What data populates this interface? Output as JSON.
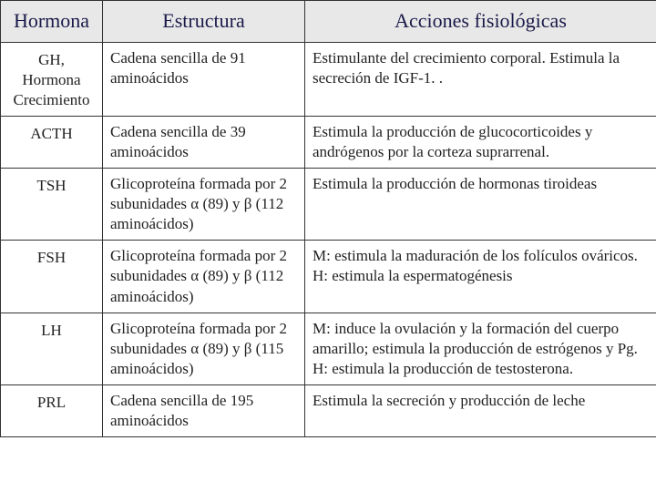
{
  "headers": [
    "Hormona",
    "Estructura",
    "Acciones fisiológicas"
  ],
  "rows": [
    {
      "hormona": "GH,\nHormona\nCrecimiento",
      "estructura": "Cadena sencilla de 91 aminoácidos",
      "acciones": "Estimulante del crecimiento corporal. Estimula la secreción de IGF-1. ."
    },
    {
      "hormona": "ACTH",
      "estructura": "Cadena sencilla de 39 aminoácidos",
      "acciones": "Estimula la producción de glucocorticoides y andrógenos por la corteza suprarrenal."
    },
    {
      "hormona": "TSH",
      "estructura": "Glicoproteína formada por 2 subunidades α (89) y β (112 aminoácidos)",
      "acciones": "Estimula la producción de hormonas tiroideas"
    },
    {
      "hormona": "FSH",
      "estructura": "Glicoproteína formada por 2 subunidades α (89) y β (112 aminoácidos)",
      "acciones": "M: estimula la maduración de los folículos ováricos. H: estimula la espermatogénesis"
    },
    {
      "hormona": "LH",
      "estructura": "Glicoproteína formada por 2 subunidades α (89) y β (115 aminoácidos)",
      "acciones": "M: induce la ovulación y la formación del cuerpo amarillo; estimula la producción de estrógenos y Pg. H: estimula la producción de testosterona."
    },
    {
      "hormona": "PRL",
      "estructura": "Cadena sencilla de 195 aminoácidos",
      "acciones": "Estimula la secreción y producción de leche"
    }
  ],
  "colors": {
    "header_bg": "#e8e8e8",
    "border": "#333333",
    "text": "#222222",
    "header_text": "#1a1a4a"
  }
}
